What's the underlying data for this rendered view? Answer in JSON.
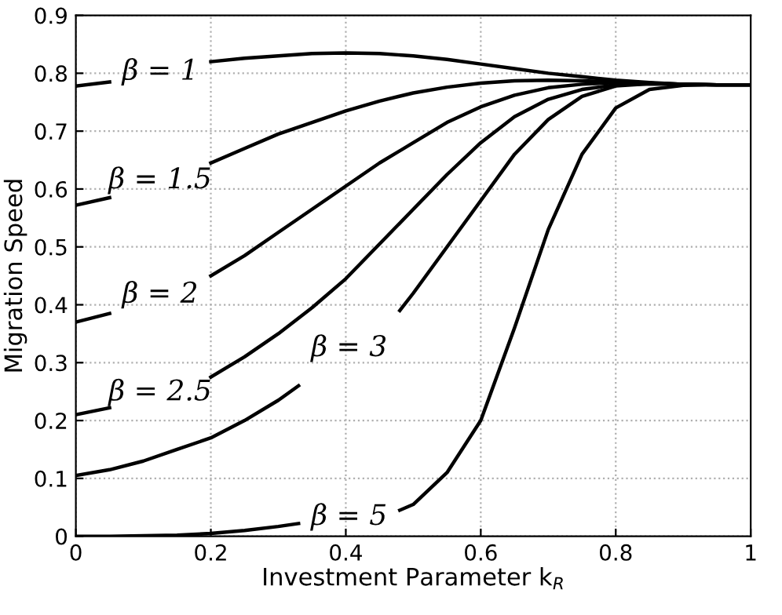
{
  "chart_data": {
    "type": "line",
    "xlabel": "Investment Parameter k$_{R}$",
    "ylabel": "Migration Speed",
    "x": [
      0,
      0.05,
      0.1,
      0.15,
      0.2,
      0.25,
      0.3,
      0.35,
      0.4,
      0.45,
      0.5,
      0.55,
      0.6,
      0.65,
      0.7,
      0.75,
      0.8,
      0.85,
      0.9,
      0.95,
      1
    ],
    "series": [
      {
        "name": "β = 1",
        "color": "#000000",
        "values": [
          0.778,
          0.785,
          null,
          null,
          0.82,
          0.826,
          0.83,
          0.834,
          0.835,
          0.834,
          0.83,
          0.824,
          0.816,
          0.808,
          0.8,
          0.794,
          0.788,
          0.784,
          0.781,
          0.78,
          0.78
        ]
      },
      {
        "name": "β = 1.5",
        "color": "#000000",
        "values": [
          0.572,
          0.585,
          null,
          null,
          0.645,
          0.67,
          0.695,
          0.715,
          0.735,
          0.752,
          0.766,
          0.776,
          0.783,
          0.787,
          0.788,
          0.787,
          0.785,
          0.783,
          0.781,
          0.78,
          0.78
        ]
      },
      {
        "name": "β = 2",
        "color": "#000000",
        "values": [
          0.37,
          0.385,
          null,
          null,
          0.45,
          0.485,
          0.525,
          0.565,
          0.605,
          0.645,
          0.68,
          0.715,
          0.742,
          0.762,
          0.775,
          0.781,
          0.784,
          0.783,
          0.781,
          0.78,
          0.78
        ]
      },
      {
        "name": "β = 2.5",
        "color": "#000000",
        "values": [
          0.21,
          0.222,
          null,
          null,
          0.275,
          0.31,
          0.35,
          0.395,
          0.445,
          0.505,
          0.565,
          0.625,
          0.68,
          0.725,
          0.755,
          0.772,
          0.78,
          0.782,
          0.781,
          0.78,
          0.78
        ]
      },
      {
        "name": "β = 3",
        "color": "#000000",
        "x": [
          0,
          0.05,
          0.1,
          0.15,
          0.2,
          0.25,
          0.3,
          0.33,
          0.4,
          0.48,
          0.5,
          0.55,
          0.6,
          0.65,
          0.7,
          0.75,
          0.8,
          0.85,
          0.9,
          0.95,
          1
        ],
        "values": [
          0.105,
          0.115,
          0.13,
          0.15,
          0.17,
          0.2,
          0.235,
          0.26,
          null,
          0.39,
          0.42,
          0.5,
          0.58,
          0.66,
          0.72,
          0.76,
          0.778,
          0.782,
          0.781,
          0.78,
          0.78
        ]
      },
      {
        "name": "β = 5",
        "color": "#000000",
        "x": [
          0,
          0.05,
          0.1,
          0.15,
          0.2,
          0.25,
          0.3,
          0.33,
          0.4,
          0.48,
          0.5,
          0.55,
          0.6,
          0.65,
          0.7,
          0.75,
          0.8,
          0.85,
          0.9,
          0.95,
          1
        ],
        "values": [
          0.0,
          0.0,
          0.001,
          0.002,
          0.005,
          0.01,
          0.017,
          0.022,
          null,
          0.045,
          0.055,
          0.11,
          0.2,
          0.36,
          0.53,
          0.66,
          0.74,
          0.772,
          0.779,
          0.78,
          0.78
        ]
      }
    ],
    "xlim": [
      0,
      1
    ],
    "ylim": [
      0,
      0.9
    ],
    "xticks": [
      0,
      0.2,
      0.4,
      0.6,
      0.8,
      1
    ],
    "yticks": [
      0,
      0.1,
      0.2,
      0.3,
      0.4,
      0.5,
      0.6,
      0.7,
      0.8,
      0.9
    ],
    "grid": true,
    "legend": false,
    "marker": "none",
    "line_style": "solid"
  }
}
